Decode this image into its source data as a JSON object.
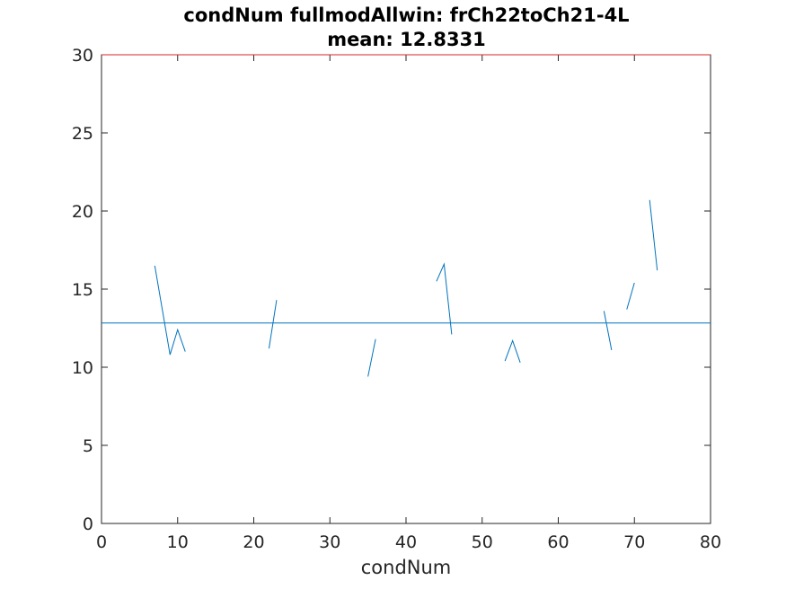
{
  "chart_data": {
    "type": "line",
    "title": "condNum fullmodAllwin: frCh22toCh21-4L",
    "subtitle": "mean: 12.8331",
    "xlabel": "condNum",
    "ylabel": "",
    "xlim": [
      0,
      80
    ],
    "ylim": [
      0,
      30
    ],
    "xticks": [
      0,
      10,
      20,
      30,
      40,
      50,
      60,
      70,
      80
    ],
    "yticks": [
      0,
      5,
      10,
      15,
      20,
      25,
      30
    ],
    "grid": false,
    "series": [
      {
        "color": "#0072bd",
        "segments": [
          [
            [
              7,
              16.5
            ],
            [
              9,
              10.8
            ],
            [
              10,
              12.4
            ],
            [
              11,
              11.0
            ]
          ],
          [
            [
              22,
              11.2
            ],
            [
              23,
              14.3
            ]
          ],
          [
            [
              35,
              9.4
            ],
            [
              36,
              11.8
            ]
          ],
          [
            [
              44,
              15.5
            ],
            [
              45,
              16.6
            ],
            [
              46,
              12.1
            ]
          ],
          [
            [
              53,
              10.4
            ],
            [
              54,
              11.7
            ],
            [
              55,
              10.3
            ]
          ],
          [
            [
              66,
              13.6
            ],
            [
              67,
              11.1
            ]
          ],
          [
            [
              69,
              13.7
            ],
            [
              70,
              15.4
            ]
          ],
          [
            [
              72,
              20.7
            ],
            [
              73,
              16.2
            ]
          ]
        ]
      }
    ],
    "mean_line": {
      "value": 12.8331,
      "color": "#0072bd"
    },
    "upper_line": {
      "value": 30,
      "color": "#d62728"
    }
  }
}
